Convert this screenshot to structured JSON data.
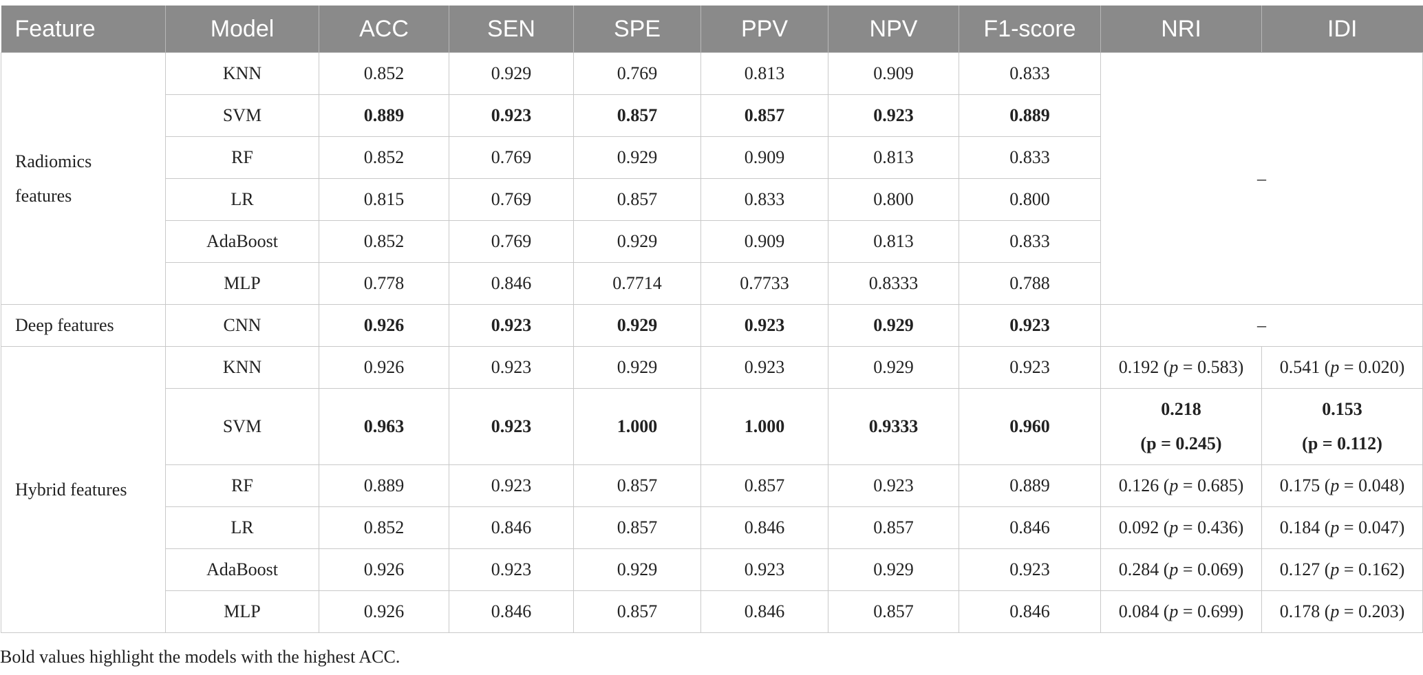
{
  "headers": [
    "Feature",
    "Model",
    "ACC",
    "SEN",
    "SPE",
    "PPV",
    "NPV",
    "F1-score",
    "NRI",
    "IDI"
  ],
  "groups": {
    "radiomics": {
      "label_line1": "Radiomics",
      "label_line2": "features",
      "dash": "–",
      "rows": [
        [
          "KNN",
          "0.852",
          "0.929",
          "0.769",
          "0.813",
          "0.909",
          "0.833"
        ],
        [
          "SVM",
          "0.889",
          "0.923",
          "0.857",
          "0.857",
          "0.923",
          "0.889"
        ],
        [
          "RF",
          "0.852",
          "0.769",
          "0.929",
          "0.909",
          "0.813",
          "0.833"
        ],
        [
          "LR",
          "0.815",
          "0.769",
          "0.857",
          "0.833",
          "0.800",
          "0.800"
        ],
        [
          "AdaBoost",
          "0.852",
          "0.769",
          "0.929",
          "0.909",
          "0.813",
          "0.833"
        ],
        [
          "MLP",
          "0.778",
          "0.846",
          "0.7714",
          "0.7733",
          "0.8333",
          "0.788"
        ]
      ]
    },
    "deep": {
      "label": "Deep features",
      "dash": "–",
      "row": [
        "CNN",
        "0.926",
        "0.923",
        "0.929",
        "0.923",
        "0.929",
        "0.923"
      ]
    },
    "hybrid": {
      "label": "Hybrid features",
      "rows": [
        {
          "cells": [
            "KNN",
            "0.926",
            "0.923",
            "0.929",
            "0.923",
            "0.929",
            "0.923"
          ],
          "nri": "0.192",
          "nri_p": "0.583",
          "idi": "0.541",
          "idi_p": "0.020"
        },
        {
          "cells": [
            "SVM",
            "0.963",
            "0.923",
            "1.000",
            "1.000",
            "0.9333",
            "0.960"
          ],
          "nri": "0.218",
          "nri_p": "0.245",
          "idi": "0.153",
          "idi_p": "0.112"
        },
        {
          "cells": [
            "RF",
            "0.889",
            "0.923",
            "0.857",
            "0.857",
            "0.923",
            "0.889"
          ],
          "nri": "0.126",
          "nri_p": "0.685",
          "idi": "0.175",
          "idi_p": "0.048"
        },
        {
          "cells": [
            "LR",
            "0.852",
            "0.846",
            "0.857",
            "0.846",
            "0.857",
            "0.846"
          ],
          "nri": "0.092",
          "nri_p": "0.436",
          "idi": "0.184",
          "idi_p": "0.047"
        },
        {
          "cells": [
            "AdaBoost",
            "0.926",
            "0.923",
            "0.929",
            "0.923",
            "0.929",
            "0.923"
          ],
          "nri": "0.284",
          "nri_p": "0.069",
          "idi": "0.127",
          "idi_p": "0.162"
        },
        {
          "cells": [
            "MLP",
            "0.926",
            "0.846",
            "0.857",
            "0.846",
            "0.857",
            "0.846"
          ],
          "nri": "0.084",
          "nri_p": "0.699",
          "idi": "0.178",
          "idi_p": "0.203"
        }
      ]
    }
  },
  "p_symbol": "p",
  "footnote": "Bold values highlight the models with the highest ACC."
}
